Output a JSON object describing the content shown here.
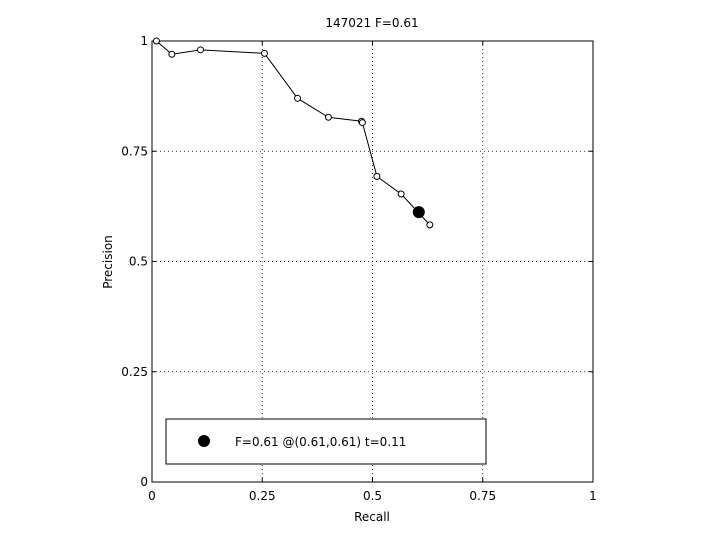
{
  "chart_data": {
    "type": "line",
    "title": "147021 F=0.61",
    "xlabel": "Recall",
    "ylabel": "Precision",
    "xlim": [
      0,
      1
    ],
    "ylim": [
      0,
      1
    ],
    "xticks": [
      0,
      0.25,
      0.5,
      0.75,
      1
    ],
    "xtick_labels": [
      "0",
      "0.25",
      "0.5",
      "0.75",
      "1"
    ],
    "yticks": [
      0,
      0.25,
      0.5,
      0.75,
      1
    ],
    "ytick_labels": [
      "0",
      "0.25",
      "0.5",
      "0.75",
      "1"
    ],
    "grid": true,
    "series": [
      {
        "x": [
          0.01,
          0.045,
          0.11,
          0.255,
          0.33,
          0.4,
          0.475,
          0.477,
          0.51,
          0.565,
          0.63
        ],
        "y": [
          1.0,
          0.97,
          0.98,
          0.972,
          0.87,
          0.827,
          0.818,
          0.815,
          0.693,
          0.653,
          0.583
        ]
      }
    ],
    "best_point": {
      "x": 0.605,
      "y": 0.612
    },
    "legend": {
      "position": "bottom-left",
      "entry": "F=0.61 @(0.61,0.61) t=0.11"
    }
  }
}
